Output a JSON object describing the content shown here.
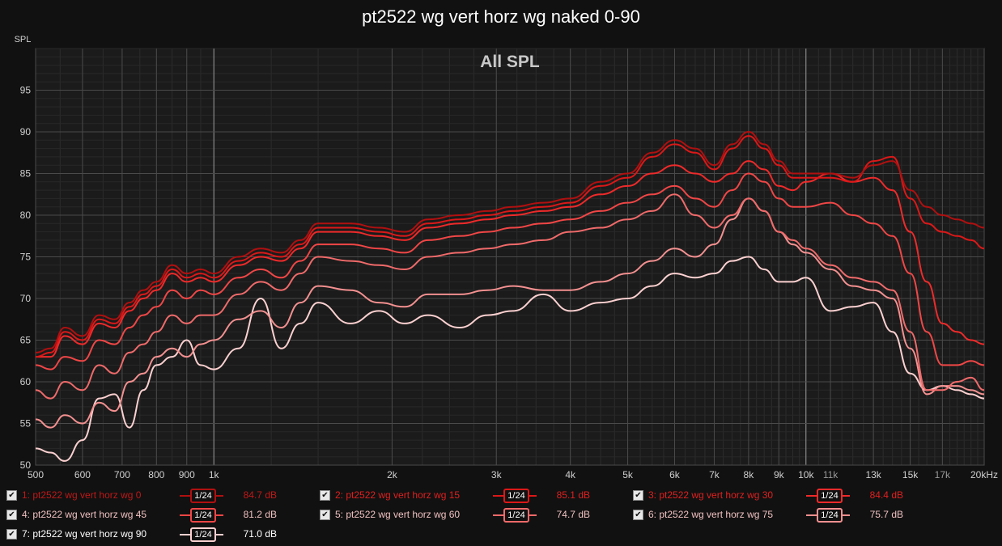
{
  "title": "pt2522 wg vert horz wg naked 0-90",
  "chart_data": {
    "type": "line",
    "title": "pt2522 wg vert horz wg naked 0-90",
    "subtitle": "All SPL",
    "ylabel": "SPL",
    "xlabel": "",
    "x_scale": "log",
    "xlim": [
      500,
      20000
    ],
    "ylim": [
      50,
      100
    ],
    "yticks": [
      50,
      55,
      60,
      65,
      70,
      75,
      80,
      85,
      90,
      95
    ],
    "xticks": [
      {
        "v": 500,
        "label": "500",
        "major": false
      },
      {
        "v": 600,
        "label": "600",
        "major": false
      },
      {
        "v": 700,
        "label": "700",
        "major": false
      },
      {
        "v": 800,
        "label": "800",
        "major": false
      },
      {
        "v": 900,
        "label": "900",
        "major": false
      },
      {
        "v": 1000,
        "label": "1k",
        "major": true
      },
      {
        "v": 2000,
        "label": "2k",
        "major": false
      },
      {
        "v": 3000,
        "label": "3k",
        "major": false
      },
      {
        "v": 4000,
        "label": "4k",
        "major": false
      },
      {
        "v": 5000,
        "label": "5k",
        "major": false
      },
      {
        "v": 6000,
        "label": "6k",
        "major": false
      },
      {
        "v": 7000,
        "label": "7k",
        "major": false
      },
      {
        "v": 8000,
        "label": "8k",
        "major": false
      },
      {
        "v": 9000,
        "label": "9k",
        "major": false
      },
      {
        "v": 10000,
        "label": "10k",
        "major": true
      },
      {
        "v": 11000,
        "label": "11k",
        "major": false
      },
      {
        "v": 13000,
        "label": "13k",
        "major": false
      },
      {
        "v": 15000,
        "label": "15k",
        "major": false
      },
      {
        "v": 17000,
        "label": "17k",
        "major": false
      },
      {
        "v": 20000,
        "label": "20kHz",
        "major": false
      }
    ],
    "grid": true,
    "legend_position": "bottom",
    "series": [
      {
        "name": "1: pt2522 wg vert horz wg 0",
        "smoothing": "1/24",
        "value_label": "84.7 dB",
        "color": "#b01010",
        "x": [
          500,
          530,
          560,
          600,
          640,
          680,
          720,
          760,
          800,
          850,
          900,
          950,
          1000,
          1100,
          1200,
          1300,
          1400,
          1500,
          1700,
          1900,
          2100,
          2300,
          2600,
          2900,
          3200,
          3600,
          4000,
          4500,
          5000,
          5500,
          6000,
          6500,
          7000,
          7500,
          8000,
          8500,
          9000,
          9500,
          10000,
          11000,
          12000,
          13000,
          14000,
          15000,
          16000,
          17000,
          18000,
          19000,
          20000
        ],
        "y": [
          63.5,
          64,
          66.5,
          65.5,
          68,
          67.5,
          69.5,
          71,
          72,
          74,
          73,
          73.5,
          73,
          75,
          76,
          75.5,
          77,
          79,
          79,
          78.5,
          78,
          79.5,
          80,
          80.5,
          81,
          81.5,
          82,
          84,
          85,
          87.5,
          89,
          88,
          86,
          88.5,
          90,
          88.5,
          86.5,
          85,
          85,
          85,
          84.5,
          86,
          86.5,
          83,
          81,
          80,
          79.5,
          79,
          78.5
        ]
      },
      {
        "name": "2: pt2522 wg vert horz wg 15",
        "smoothing": "1/24",
        "value_label": "85.1 dB",
        "color": "#dc1818",
        "x": [
          500,
          530,
          560,
          600,
          640,
          680,
          720,
          760,
          800,
          850,
          900,
          950,
          1000,
          1100,
          1200,
          1300,
          1400,
          1500,
          1700,
          1900,
          2100,
          2300,
          2600,
          2900,
          3200,
          3600,
          4000,
          4500,
          5000,
          5500,
          6000,
          6500,
          7000,
          7500,
          8000,
          8500,
          9000,
          9500,
          10000,
          11000,
          12000,
          13000,
          14000,
          15000,
          16000,
          17000,
          18000,
          19000,
          20000
        ],
        "y": [
          63,
          63.5,
          66,
          65,
          67.5,
          67,
          69,
          70.5,
          71.5,
          73.5,
          72.5,
          73,
          72.5,
          74.5,
          75.5,
          75,
          76.5,
          78.5,
          78.5,
          78,
          77.5,
          79,
          79.5,
          80,
          80.5,
          81,
          81.5,
          83.5,
          84.5,
          87,
          88.5,
          87.5,
          85.5,
          88,
          89.5,
          88,
          86,
          84.5,
          84.5,
          84.5,
          84,
          86.5,
          87,
          82,
          79,
          78,
          77.5,
          77,
          76
        ]
      },
      {
        "name": "3: pt2522 wg vert horz wg 30",
        "smoothing": "1/24",
        "value_label": "84.4 dB",
        "color": "#ee2a2a",
        "x": [
          500,
          530,
          560,
          600,
          640,
          680,
          720,
          760,
          800,
          850,
          900,
          950,
          1000,
          1100,
          1200,
          1300,
          1400,
          1500,
          1700,
          1900,
          2100,
          2300,
          2600,
          2900,
          3200,
          3600,
          4000,
          4500,
          5000,
          5500,
          6000,
          6500,
          7000,
          7500,
          8000,
          8500,
          9000,
          9500,
          10000,
          11000,
          12000,
          13000,
          14000,
          15000,
          16000,
          17000,
          18000,
          19000,
          20000
        ],
        "y": [
          63,
          63,
          65.5,
          64.5,
          67,
          66.5,
          68.5,
          70,
          71,
          73,
          72,
          72.5,
          72,
          74,
          75,
          74.5,
          76,
          78,
          78,
          77.5,
          77,
          78.5,
          79,
          79.5,
          80,
          80.5,
          81,
          82.5,
          83.5,
          85,
          86,
          85,
          84,
          85,
          86.5,
          85.5,
          83.5,
          83,
          84,
          85,
          84,
          84.5,
          83,
          78,
          72,
          67,
          66,
          65,
          64.5
        ]
      },
      {
        "name": "4: pt2522 wg vert horz wg 45",
        "smoothing": "1/24",
        "value_label": "81.2 dB",
        "color": "#f04646",
        "x": [
          500,
          530,
          560,
          600,
          640,
          680,
          720,
          760,
          800,
          850,
          900,
          950,
          1000,
          1100,
          1200,
          1300,
          1400,
          1500,
          1700,
          1900,
          2100,
          2300,
          2600,
          2900,
          3200,
          3600,
          4000,
          4500,
          5000,
          5500,
          6000,
          6500,
          7000,
          7500,
          8000,
          8500,
          9000,
          9500,
          10000,
          11000,
          12000,
          13000,
          14000,
          15000,
          16000,
          17000,
          18000,
          19000,
          20000
        ],
        "y": [
          62,
          61.5,
          63,
          62.5,
          65,
          64.5,
          66.5,
          68,
          69,
          71,
          70,
          71,
          70.5,
          72.5,
          73.5,
          72.5,
          74.5,
          76.5,
          76.5,
          76,
          75.5,
          77,
          77.5,
          78,
          78.5,
          79,
          79.5,
          80.5,
          81.5,
          82.5,
          83.5,
          82,
          81,
          83,
          85,
          84,
          82,
          81,
          81,
          81.5,
          80,
          79,
          77.5,
          73,
          66,
          62,
          62,
          62.5,
          62
        ]
      },
      {
        "name": "5: pt2522 wg vert horz wg 60",
        "smoothing": "1/24",
        "value_label": "74.7 dB",
        "color": "#f06a6a",
        "x": [
          500,
          530,
          560,
          600,
          640,
          680,
          720,
          760,
          800,
          850,
          900,
          950,
          1000,
          1100,
          1200,
          1300,
          1400,
          1500,
          1700,
          1900,
          2100,
          2300,
          2600,
          2900,
          3200,
          3600,
          4000,
          4500,
          5000,
          5500,
          6000,
          6500,
          7000,
          7500,
          8000,
          8500,
          9000,
          9500,
          10000,
          11000,
          12000,
          13000,
          14000,
          15000,
          16000,
          17000,
          18000,
          19000,
          20000
        ],
        "y": [
          59,
          58,
          60,
          59,
          62,
          61,
          63.5,
          64.5,
          66,
          68,
          67,
          68,
          68,
          70.5,
          72,
          71,
          73,
          75,
          74.5,
          74,
          73.5,
          75,
          75.5,
          76,
          76.5,
          77,
          78,
          78.5,
          79.5,
          80.5,
          82.5,
          80,
          78.5,
          80,
          82,
          80.5,
          78,
          77,
          76,
          74,
          72.5,
          72,
          71,
          66,
          59,
          59,
          60,
          60.5,
          59
        ]
      },
      {
        "name": "6: pt2522 wg vert horz wg 75",
        "smoothing": "1/24",
        "value_label": "75.7 dB",
        "color": "#f49090",
        "x": [
          500,
          530,
          560,
          600,
          640,
          680,
          720,
          760,
          800,
          850,
          900,
          950,
          1000,
          1100,
          1200,
          1300,
          1400,
          1500,
          1700,
          1900,
          2100,
          2300,
          2600,
          2900,
          3200,
          3600,
          4000,
          4500,
          5000,
          5500,
          6000,
          6500,
          7000,
          7500,
          8000,
          8500,
          9000,
          9500,
          10000,
          11000,
          12000,
          13000,
          14000,
          15000,
          16000,
          17000,
          18000,
          19000,
          20000
        ],
        "y": [
          55.5,
          54.5,
          56,
          55,
          57.5,
          56.5,
          60,
          61,
          63,
          64,
          63,
          64.5,
          65,
          67.5,
          68.5,
          66.5,
          69.5,
          71.5,
          71,
          69.5,
          69,
          70.5,
          70.5,
          71,
          71.5,
          71,
          71,
          72,
          73,
          74.5,
          76,
          75,
          76.5,
          79.5,
          82,
          80.5,
          78,
          76.5,
          75.5,
          73.5,
          71.5,
          71,
          70,
          64,
          58.5,
          59.5,
          59.5,
          59,
          58.5
        ]
      },
      {
        "name": "7: pt2522 wg vert horz wg 90",
        "smoothing": "1/24",
        "value_label": "71.0 dB",
        "color": "#fcd0d0",
        "x": [
          500,
          530,
          560,
          600,
          640,
          680,
          720,
          760,
          800,
          850,
          900,
          950,
          1000,
          1100,
          1200,
          1300,
          1400,
          1500,
          1700,
          1900,
          2100,
          2300,
          2600,
          2900,
          3200,
          3600,
          4000,
          4500,
          5000,
          5500,
          6000,
          6500,
          7000,
          7500,
          8000,
          8500,
          9000,
          9500,
          10000,
          11000,
          12000,
          13000,
          14000,
          15000,
          16000,
          17000,
          18000,
          19000,
          20000
        ],
        "y": [
          52,
          51.5,
          50.5,
          53,
          58,
          58.5,
          54.5,
          59,
          62,
          63,
          65,
          62,
          61.5,
          64,
          70,
          64,
          67,
          69.5,
          67,
          68.5,
          67,
          68,
          66.5,
          68,
          68.5,
          70.5,
          68.5,
          69.5,
          70,
          71.5,
          73,
          72.5,
          73,
          74.5,
          75,
          73.5,
          72,
          72,
          72.5,
          68.5,
          69,
          69.5,
          66,
          61,
          59,
          59.5,
          59,
          58.5,
          58
        ]
      }
    ]
  }
}
